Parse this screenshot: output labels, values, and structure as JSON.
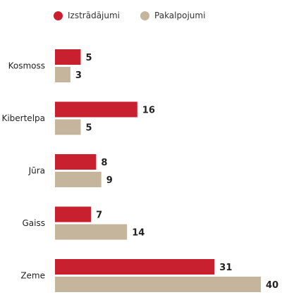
{
  "chart_data": {
    "type": "bar",
    "orientation": "horizontal",
    "categories": [
      "Kosmoss",
      "Kibertelpa",
      "Jūra",
      "Gaiss",
      "Zeme"
    ],
    "series": [
      {
        "name": "Izstrādājumi",
        "color": "#c8202f",
        "values": [
          5,
          16,
          8,
          7,
          31
        ]
      },
      {
        "name": "Pakalpojumi",
        "color": "#c4b59c",
        "values": [
          3,
          5,
          9,
          14,
          40
        ]
      }
    ],
    "title": "",
    "xlabel": "",
    "ylabel": "",
    "xlim": [
      0,
      40
    ],
    "grid": false,
    "legend": "top-left"
  }
}
